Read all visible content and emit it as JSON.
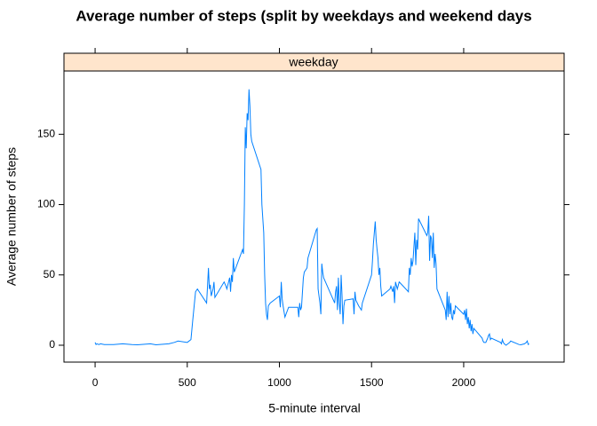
{
  "chart_data": {
    "type": "line",
    "title": "Average number of steps (split by weekdays and weekend days",
    "xlabel": "5-minute interval",
    "ylabel": "Average number of steps",
    "panel": "weekday",
    "xlim": [
      -169,
      2545
    ],
    "ylim": [
      -12,
      195
    ],
    "xticks": [
      0,
      500,
      1000,
      1500,
      2000
    ],
    "yticks": [
      0,
      50,
      100,
      150
    ],
    "grid": false,
    "series": [
      {
        "name": "weekday",
        "color": "#0080ff",
        "x": [
          0,
          5,
          10,
          20,
          30,
          50,
          100,
          150,
          200,
          230,
          300,
          330,
          400,
          430,
          450,
          500,
          520,
          530,
          545,
          555,
          605,
          610,
          615,
          620,
          625,
          630,
          640,
          645,
          650,
          700,
          710,
          715,
          730,
          735,
          740,
          745,
          750,
          755,
          800,
          805,
          810,
          815,
          820,
          825,
          830,
          835,
          840,
          845,
          850,
          900,
          905,
          910,
          915,
          920,
          925,
          930,
          935,
          940,
          950,
          1000,
          1005,
          1010,
          1015,
          1020,
          1030,
          1050,
          1100,
          1105,
          1110,
          1115,
          1120,
          1130,
          1135,
          1150,
          1155,
          1200,
          1205,
          1210,
          1215,
          1220,
          1225,
          1230,
          1235,
          1240,
          1250,
          1300,
          1305,
          1310,
          1315,
          1320,
          1325,
          1330,
          1335,
          1340,
          1345,
          1350,
          1355,
          1400,
          1405,
          1410,
          1415,
          1430,
          1445,
          1450,
          1500,
          1505,
          1510,
          1515,
          1520,
          1525,
          1530,
          1535,
          1540,
          1545,
          1550,
          1555,
          1600,
          1605,
          1615,
          1620,
          1625,
          1630,
          1640,
          1650,
          1700,
          1705,
          1710,
          1715,
          1720,
          1725,
          1730,
          1735,
          1740,
          1745,
          1750,
          1755,
          1800,
          1805,
          1810,
          1815,
          1820,
          1825,
          1830,
          1835,
          1840,
          1845,
          1850,
          1855,
          1900,
          1905,
          1910,
          1915,
          1920,
          1925,
          1930,
          1935,
          1940,
          1945,
          1950,
          1955,
          2000,
          2005,
          2010,
          2015,
          2020,
          2025,
          2030,
          2035,
          2040,
          2045,
          2050,
          2055,
          2100,
          2105,
          2110,
          2120,
          2130,
          2135,
          2140,
          2145,
          2150,
          2200,
          2205,
          2210,
          2215,
          2220,
          2230,
          2240,
          2250,
          2255,
          2300,
          2310,
          2330,
          2340,
          2345,
          2350,
          2355
        ],
        "values": [
          2,
          0.5,
          1,
          0.5,
          1,
          0.5,
          0.5,
          1,
          0.5,
          0.3,
          1,
          0.3,
          1,
          2,
          3,
          2,
          4,
          18,
          38,
          40,
          30,
          42,
          55,
          40,
          43,
          35,
          40,
          45,
          34,
          45,
          42,
          40,
          48,
          38,
          50,
          45,
          62,
          52,
          68,
          65,
          100,
          155,
          140,
          165,
          160,
          182,
          170,
          150,
          145,
          125,
          100,
          90,
          80,
          50,
          30,
          22,
          18,
          28,
          30,
          35,
          27,
          45,
          33,
          28,
          20,
          27,
          27,
          20,
          30,
          25,
          27,
          48,
          52,
          55,
          62,
          82,
          83,
          40,
          35,
          30,
          22,
          58,
          52,
          48,
          45,
          30,
          38,
          42,
          25,
          48,
          30,
          22,
          50,
          35,
          15,
          28,
          32,
          33,
          22,
          38,
          32,
          28,
          25,
          30,
          50,
          60,
          72,
          80,
          88,
          75,
          68,
          62,
          50,
          55,
          42,
          35,
          40,
          42,
          38,
          42,
          30,
          45,
          40,
          45,
          38,
          55,
          50,
          62,
          56,
          60,
          70,
          80,
          57,
          75,
          68,
          90,
          78,
          80,
          92,
          60,
          78,
          76,
          62,
          80,
          55,
          65,
          58,
          40,
          25,
          18,
          38,
          20,
          35,
          22,
          30,
          20,
          18,
          25,
          22,
          28,
          22,
          25,
          18,
          26,
          15,
          20,
          12,
          18,
          10,
          15,
          8,
          12,
          5,
          3,
          2,
          2,
          5,
          7,
          8,
          4,
          5,
          2,
          1,
          4,
          2,
          1,
          0,
          1,
          2,
          3,
          0.5,
          0.3,
          1,
          2,
          3,
          0.5,
          1
        ]
      }
    ]
  }
}
